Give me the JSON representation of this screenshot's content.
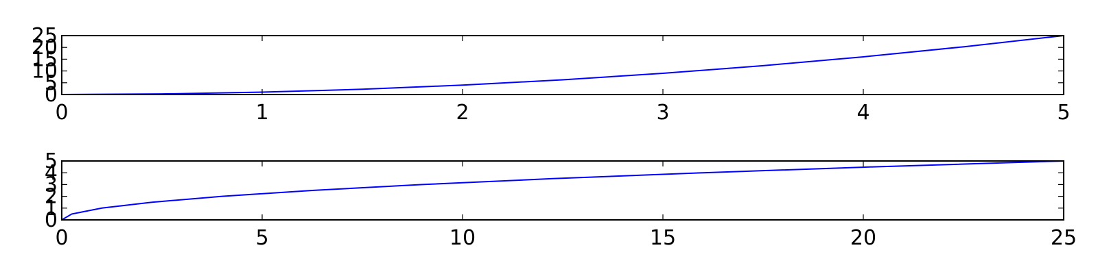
{
  "chart_data": [
    {
      "type": "line",
      "title": "",
      "xlabel": "",
      "ylabel": "",
      "xlim": [
        0,
        5
      ],
      "ylim": [
        0,
        25
      ],
      "xticks": [
        0,
        1,
        2,
        3,
        4,
        5
      ],
      "yticks": [
        0,
        5,
        10,
        15,
        20,
        25
      ],
      "grid": false,
      "color": "#0000ff",
      "series": [
        {
          "x": [
            0,
            0.5,
            1,
            1.5,
            2,
            2.5,
            3,
            3.5,
            4,
            4.5,
            5
          ],
          "y": [
            0,
            0.25,
            1,
            2.25,
            4,
            6.25,
            9,
            12.25,
            16,
            20.25,
            25
          ]
        }
      ]
    },
    {
      "type": "line",
      "title": "",
      "xlabel": "",
      "ylabel": "",
      "xlim": [
        0,
        25
      ],
      "ylim": [
        0,
        5
      ],
      "xticks": [
        0,
        5,
        10,
        15,
        20,
        25
      ],
      "yticks": [
        0,
        1,
        2,
        3,
        4,
        5
      ],
      "grid": false,
      "color": "#0000ff",
      "series": [
        {
          "x": [
            0,
            0.25,
            1,
            2.25,
            4,
            6.25,
            9,
            12.25,
            16,
            20.25,
            25
          ],
          "y": [
            0,
            0.5,
            1,
            1.5,
            2,
            2.5,
            3,
            3.5,
            4,
            4.5,
            5
          ]
        }
      ]
    }
  ]
}
